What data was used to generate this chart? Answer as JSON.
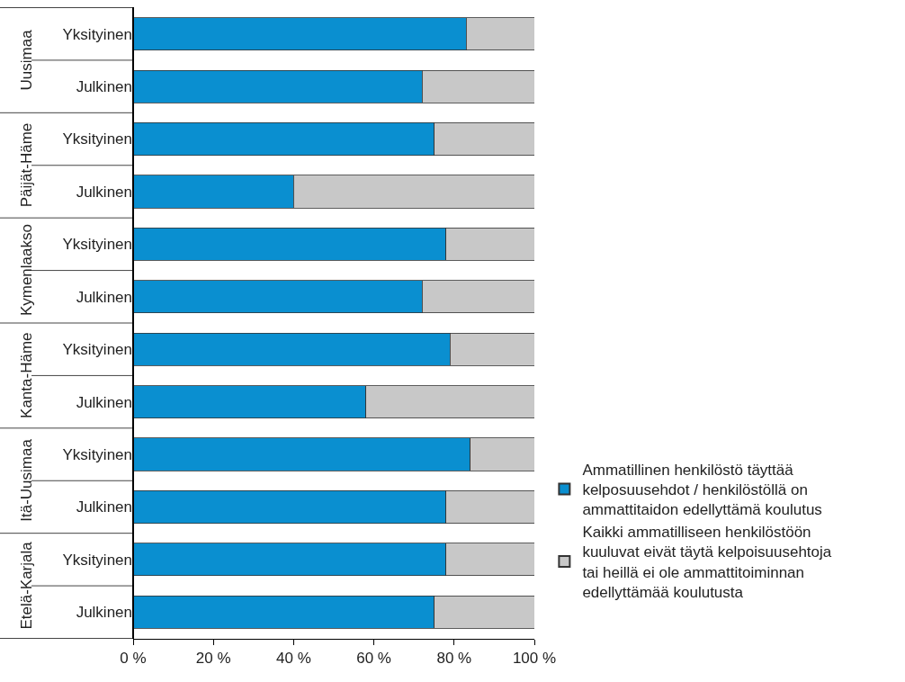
{
  "chart_data": {
    "type": "bar",
    "orientation": "horizontal",
    "stacked": true,
    "categories": [
      "Yksityinen",
      "Julkinen",
      "Yksityinen",
      "Julkinen",
      "Yksityinen",
      "Julkinen",
      "Yksityinen",
      "Julkinen",
      "Yksityinen",
      "Julkinen",
      "Yksityinen",
      "Julkinen"
    ],
    "annotations": [
      "Uusimaa",
      "Päijät-Häme",
      "Kymenlaakso",
      "Kanta-Häme",
      "Itä-Uusimaa",
      "Etelä-Karjala"
    ],
    "series": [
      {
        "name": "Ammatillinen henkilöstö täyttää kelposuusehdot / henkilöstöllä on ammattitaidon edellyttämä koulutus",
        "color": "#0a8fd0",
        "values": [
          83,
          72,
          75,
          40,
          78,
          72,
          79,
          58,
          84,
          78,
          78,
          75
        ]
      },
      {
        "name": "Kaikki ammatilliseen henkilöstöön kuuluvat eivät täytä kelpoisuusehtoja tai heillä ei ole ammattitoiminnan edellyttämää koulutusta",
        "color": "#c8c8c8",
        "values": [
          17,
          28,
          25,
          60,
          22,
          28,
          21,
          42,
          16,
          22,
          22,
          25
        ]
      }
    ],
    "xlim": [
      0,
      100
    ],
    "xticks": [
      {
        "value": 0,
        "label": "0 %"
      },
      {
        "value": 20,
        "label": "20 %"
      },
      {
        "value": 40,
        "label": "40 %"
      },
      {
        "value": 60,
        "label": "60 %"
      },
      {
        "value": 80,
        "label": "80 %"
      },
      {
        "value": 100,
        "label": "100 %"
      }
    ],
    "legend": "right"
  }
}
